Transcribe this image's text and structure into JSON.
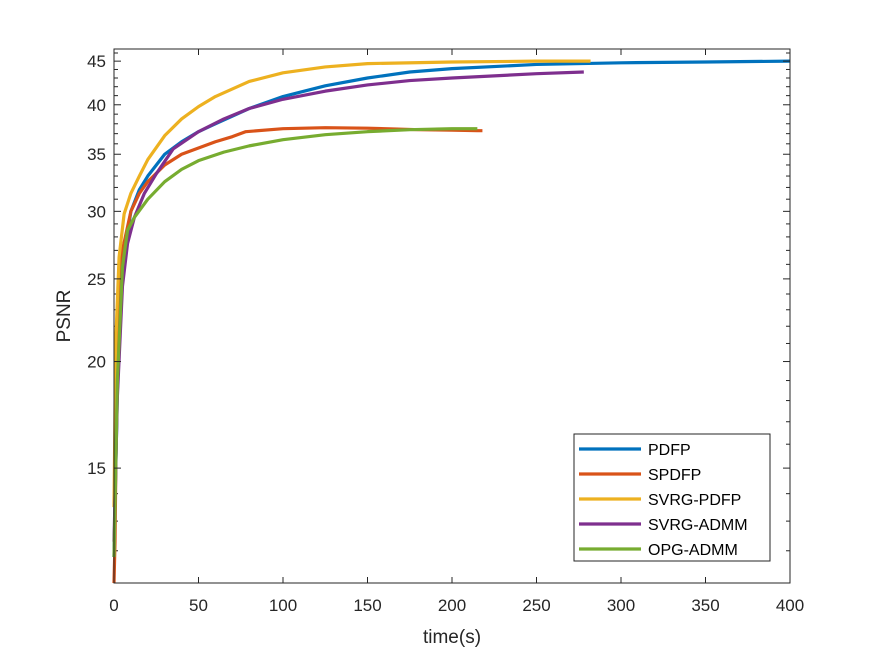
{
  "chart_data": {
    "type": "line",
    "title": "",
    "xlabel": "time(s)",
    "ylabel": "PSNR",
    "xlim": [
      0,
      400
    ],
    "ylim": [
      11,
      46.5
    ],
    "yscale": "log",
    "grid": false,
    "legend_location": "bottom-right",
    "x_ticks": [
      0,
      50,
      100,
      150,
      200,
      250,
      300,
      350,
      400
    ],
    "x_tick_labels": [
      "0",
      "50",
      "100",
      "150",
      "200",
      "250",
      "300",
      "350",
      "400"
    ],
    "y_ticks": [
      15,
      20,
      25,
      30,
      35,
      40,
      45
    ],
    "y_tick_labels": [
      "15",
      "20",
      "25",
      "30",
      "35",
      "40",
      "45"
    ],
    "series": [
      {
        "name": "PDFP",
        "color": "#0072BD",
        "points": [
          [
            0,
            11.8
          ],
          [
            2,
            18.5
          ],
          [
            5,
            26
          ],
          [
            10,
            30
          ],
          [
            15,
            31.8
          ],
          [
            20,
            33
          ],
          [
            30,
            35
          ],
          [
            40,
            36.2
          ],
          [
            50,
            37.2
          ],
          [
            60,
            38
          ],
          [
            80,
            39.6
          ],
          [
            100,
            40.9
          ],
          [
            125,
            42.1
          ],
          [
            150,
            43
          ],
          [
            175,
            43.7
          ],
          [
            200,
            44.1
          ],
          [
            250,
            44.6
          ],
          [
            300,
            44.8
          ],
          [
            350,
            44.9
          ],
          [
            400,
            45
          ]
        ]
      },
      {
        "name": "SPDFP",
        "color": "#D95319",
        "points": [
          [
            0,
            11
          ],
          [
            0.6,
            12.3
          ],
          [
            2,
            22
          ],
          [
            5,
            27
          ],
          [
            10,
            30
          ],
          [
            15,
            31.5
          ],
          [
            20,
            32.5
          ],
          [
            30,
            34
          ],
          [
            40,
            35
          ],
          [
            50,
            35.6
          ],
          [
            60,
            36.2
          ],
          [
            70,
            36.7
          ],
          [
            78,
            37.2
          ],
          [
            100,
            37.5
          ],
          [
            125,
            37.6
          ],
          [
            150,
            37.55
          ],
          [
            180,
            37.4
          ],
          [
            200,
            37.35
          ],
          [
            215,
            37.3
          ],
          [
            218,
            37.3
          ]
        ]
      },
      {
        "name": "SVRG-PDFP",
        "color": "#EDB120",
        "points": [
          [
            0,
            13.5
          ],
          [
            1,
            21
          ],
          [
            3,
            26.5
          ],
          [
            6,
            29.8
          ],
          [
            10,
            31.5
          ],
          [
            15,
            33
          ],
          [
            20,
            34.5
          ],
          [
            30,
            36.8
          ],
          [
            40,
            38.5
          ],
          [
            50,
            39.8
          ],
          [
            60,
            40.9
          ],
          [
            80,
            42.6
          ],
          [
            100,
            43.6
          ],
          [
            125,
            44.3
          ],
          [
            150,
            44.7
          ],
          [
            200,
            44.9
          ],
          [
            250,
            45
          ],
          [
            282,
            45
          ]
        ]
      },
      {
        "name": "SVRG-ADMM",
        "color": "#7E2F8E",
        "points": [
          [
            0,
            12.3
          ],
          [
            2,
            18.2
          ],
          [
            5,
            24.5
          ],
          [
            8,
            27.5
          ],
          [
            12,
            29.5
          ],
          [
            18,
            31.5
          ],
          [
            25,
            33.2
          ],
          [
            35,
            35.5
          ],
          [
            50,
            37.2
          ],
          [
            65,
            38.5
          ],
          [
            80,
            39.6
          ],
          [
            100,
            40.6
          ],
          [
            125,
            41.5
          ],
          [
            150,
            42.2
          ],
          [
            175,
            42.7
          ],
          [
            200,
            43
          ],
          [
            250,
            43.5
          ],
          [
            278,
            43.7
          ]
        ]
      },
      {
        "name": "OPG-ADMM",
        "color": "#77AC30",
        "points": [
          [
            0,
            11.8
          ],
          [
            2,
            19
          ],
          [
            5,
            25.8
          ],
          [
            8,
            28.5
          ],
          [
            12,
            29.5
          ],
          [
            20,
            31
          ],
          [
            30,
            32.5
          ],
          [
            40,
            33.6
          ],
          [
            50,
            34.4
          ],
          [
            65,
            35.2
          ],
          [
            80,
            35.8
          ],
          [
            100,
            36.4
          ],
          [
            125,
            36.9
          ],
          [
            150,
            37.2
          ],
          [
            175,
            37.4
          ],
          [
            200,
            37.5
          ],
          [
            215,
            37.5
          ]
        ]
      }
    ]
  }
}
